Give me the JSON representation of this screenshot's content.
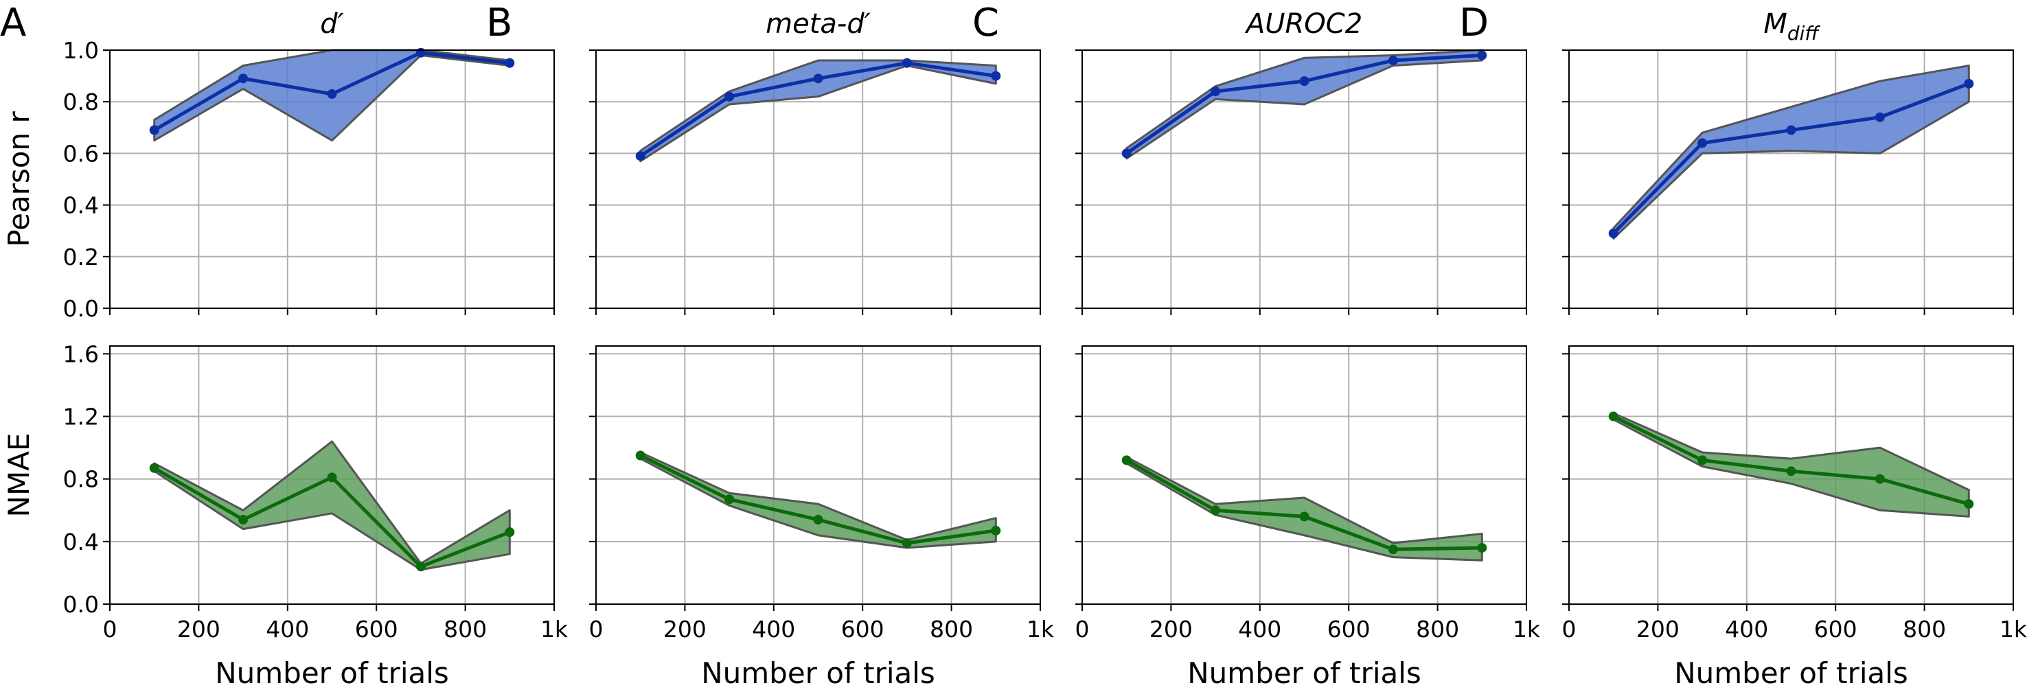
{
  "chart_data": [
    {
      "type": "line",
      "panel": "A",
      "title": "d′",
      "subplots": [
        {
          "ylabel": "Pearson r",
          "ylim": [
            0.0,
            1.0
          ],
          "yticks": [
            "0.0",
            "0.2",
            "0.4",
            "0.6",
            "0.8",
            "1.0"
          ],
          "color": "#0d2fa6",
          "fill": "#5b7fd0",
          "x": [
            100,
            300,
            500,
            700,
            900
          ],
          "values": [
            0.69,
            0.89,
            0.83,
            0.99,
            0.95
          ],
          "lower": [
            0.65,
            0.85,
            0.65,
            0.98,
            0.94
          ],
          "upper": [
            0.73,
            0.94,
            1.0,
            1.0,
            0.96
          ]
        },
        {
          "ylabel": "NMAE",
          "ylim": [
            0.0,
            1.65
          ],
          "yticks": [
            "0.0",
            "0.4",
            "0.8",
            "1.2",
            "1.6"
          ],
          "color": "#0b6a0b",
          "fill": "#5e9e5e",
          "x": [
            100,
            300,
            500,
            700,
            900
          ],
          "values": [
            0.87,
            0.54,
            0.81,
            0.24,
            0.46
          ],
          "lower": [
            0.85,
            0.48,
            0.58,
            0.22,
            0.32
          ],
          "upper": [
            0.9,
            0.6,
            1.04,
            0.26,
            0.6
          ]
        }
      ],
      "xlabel": "Number of trials",
      "xticks": [
        "0",
        "200",
        "400",
        "600",
        "800",
        "1k"
      ]
    },
    {
      "type": "line",
      "panel": "B",
      "title": "meta-d′",
      "subplots": [
        {
          "ylabel": "",
          "ylim": [
            0.0,
            1.0
          ],
          "yticks": [
            "0.0",
            "0.2",
            "0.4",
            "0.6",
            "0.8",
            "1.0"
          ],
          "color": "#0d2fa6",
          "fill": "#5b7fd0",
          "x": [
            100,
            300,
            500,
            700,
            900
          ],
          "values": [
            0.59,
            0.82,
            0.89,
            0.95,
            0.9
          ],
          "lower": [
            0.57,
            0.79,
            0.82,
            0.94,
            0.87
          ],
          "upper": [
            0.61,
            0.84,
            0.96,
            0.96,
            0.94
          ]
        },
        {
          "ylabel": "",
          "ylim": [
            0.0,
            1.65
          ],
          "yticks": [
            "0.0",
            "0.4",
            "0.8",
            "1.2",
            "1.6"
          ],
          "color": "#0b6a0b",
          "fill": "#5e9e5e",
          "x": [
            100,
            300,
            500,
            700,
            900
          ],
          "values": [
            0.95,
            0.67,
            0.54,
            0.39,
            0.47
          ],
          "lower": [
            0.93,
            0.63,
            0.44,
            0.36,
            0.4
          ],
          "upper": [
            0.97,
            0.71,
            0.64,
            0.41,
            0.55
          ]
        }
      ],
      "xlabel": "Number of trials",
      "xticks": [
        "0",
        "200",
        "400",
        "600",
        "800",
        "1k"
      ]
    },
    {
      "type": "line",
      "panel": "C",
      "title": "AUROC2",
      "subplots": [
        {
          "ylabel": "",
          "ylim": [
            0.0,
            1.0
          ],
          "yticks": [
            "0.0",
            "0.2",
            "0.4",
            "0.6",
            "0.8",
            "1.0"
          ],
          "color": "#0d2fa6",
          "fill": "#5b7fd0",
          "x": [
            100,
            300,
            500,
            700,
            900
          ],
          "values": [
            0.6,
            0.84,
            0.88,
            0.96,
            0.98
          ],
          "lower": [
            0.58,
            0.81,
            0.79,
            0.94,
            0.96
          ],
          "upper": [
            0.62,
            0.86,
            0.97,
            0.98,
            1.0
          ]
        },
        {
          "ylabel": "",
          "ylim": [
            0.0,
            1.65
          ],
          "yticks": [
            "0.0",
            "0.4",
            "0.8",
            "1.2",
            "1.6"
          ],
          "color": "#0b6a0b",
          "fill": "#5e9e5e",
          "x": [
            100,
            300,
            500,
            700,
            900
          ],
          "values": [
            0.92,
            0.6,
            0.56,
            0.35,
            0.36
          ],
          "lower": [
            0.9,
            0.57,
            0.44,
            0.3,
            0.28
          ],
          "upper": [
            0.94,
            0.64,
            0.68,
            0.39,
            0.45
          ]
        }
      ],
      "xlabel": "Number of trials",
      "xticks": [
        "0",
        "200",
        "400",
        "600",
        "800",
        "1k"
      ]
    },
    {
      "type": "line",
      "panel": "D",
      "title": "M",
      "title_sub": "diff",
      "subplots": [
        {
          "ylabel": "",
          "ylim": [
            0.0,
            1.0
          ],
          "yticks": [
            "0.0",
            "0.2",
            "0.4",
            "0.6",
            "0.8",
            "1.0"
          ],
          "color": "#0d2fa6",
          "fill": "#5b7fd0",
          "x": [
            100,
            300,
            500,
            700,
            900
          ],
          "values": [
            0.29,
            0.64,
            0.69,
            0.74,
            0.87
          ],
          "lower": [
            0.27,
            0.6,
            0.61,
            0.6,
            0.8
          ],
          "upper": [
            0.31,
            0.68,
            0.78,
            0.88,
            0.94
          ]
        },
        {
          "ylabel": "",
          "ylim": [
            0.0,
            1.65
          ],
          "yticks": [
            "0.0",
            "0.4",
            "0.8",
            "1.2",
            "1.6"
          ],
          "color": "#0b6a0b",
          "fill": "#5e9e5e",
          "x": [
            100,
            300,
            500,
            700,
            900
          ],
          "values": [
            1.2,
            0.92,
            0.85,
            0.8,
            0.64
          ],
          "lower": [
            1.18,
            0.88,
            0.77,
            0.6,
            0.56
          ],
          "upper": [
            1.22,
            0.97,
            0.93,
            1.0,
            0.73
          ]
        }
      ],
      "xlabel": "Number of trials",
      "xticks": [
        "0",
        "200",
        "400",
        "600",
        "800",
        "1k"
      ]
    }
  ],
  "xlim": [
    0,
    1000
  ],
  "xtick_values": [
    0,
    200,
    400,
    600,
    800,
    1000
  ],
  "yticks_top_values": [
    0.0,
    0.2,
    0.4,
    0.6,
    0.8,
    1.0
  ],
  "yticks_bottom_values": [
    0.0,
    0.4,
    0.8,
    1.2,
    1.6
  ]
}
